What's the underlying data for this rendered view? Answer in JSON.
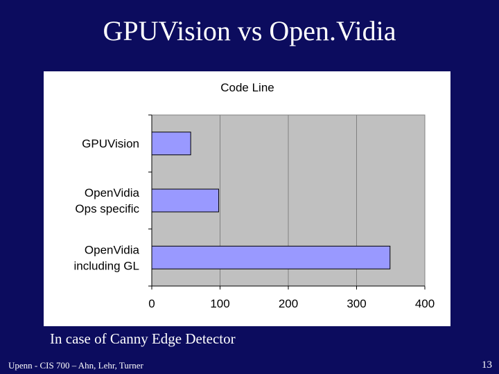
{
  "slide": {
    "title": "GPUVision vs Open.Vidia",
    "caption": "In case of Canny Edge Detector",
    "footer_left": "Upenn - CIS 700 – Ahn, Lehr, Turner",
    "page_number": "13",
    "background_color": "#0c0c5e"
  },
  "chart_data": {
    "type": "bar",
    "orientation": "horizontal",
    "title": "Code Line",
    "categories": [
      [
        "GPUVision"
      ],
      [
        "OpenVidia",
        "Ops specific"
      ],
      [
        "OpenVidia",
        "including GL"
      ]
    ],
    "values": [
      57,
      98,
      349
    ],
    "xlim": [
      0,
      400
    ],
    "xticks": [
      0,
      100,
      200,
      300,
      400
    ],
    "grid": true,
    "legend": "none",
    "bar_color": "#9999ff",
    "plot_background": "#c0c0c0"
  }
}
